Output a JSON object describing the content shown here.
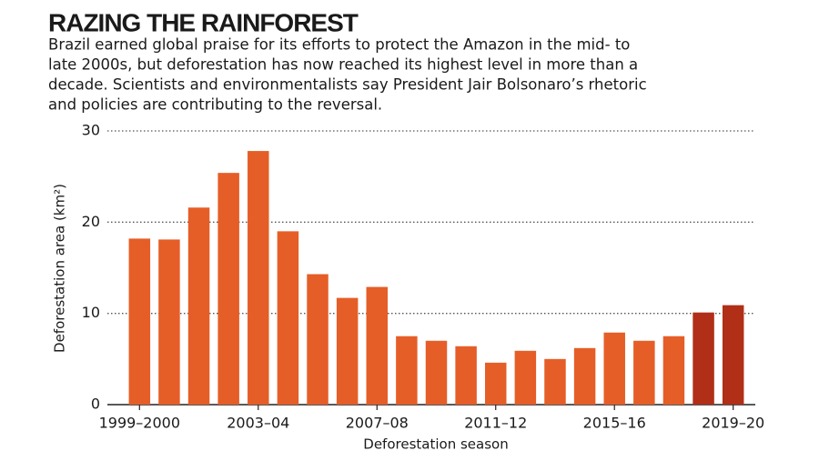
{
  "chart_data": {
    "type": "bar",
    "title": "RAZING THE RAINFOREST",
    "subtitle": [
      "Brazil earned global praise for its efforts to protect the Amazon in the mid- to",
      "late 2000s, but deforestation has now reached its highest level in more than a",
      "decade. Scientists and environmentalists say President Jair Bolsonaro’s rhetoric",
      "and policies are contributing to the reversal."
    ],
    "y_label": "Deforestation area (km²)",
    "x_label": "Deforestation season",
    "categories": [
      "1999–2000",
      null,
      null,
      null,
      "2003–04",
      null,
      null,
      null,
      "2007–08",
      null,
      null,
      null,
      "2011–12",
      null,
      null,
      null,
      "2015–16",
      null,
      null,
      null,
      "2019–20"
    ],
    "values": [
      18.2,
      18.1,
      21.6,
      25.4,
      27.8,
      19.0,
      14.3,
      11.7,
      12.9,
      7.5,
      7.0,
      6.4,
      4.6,
      5.9,
      5.0,
      6.2,
      7.9,
      7.0,
      7.5,
      10.1,
      10.9
    ],
    "colors": [
      "#e55e27",
      "#e55e27",
      "#e55e27",
      "#e55e27",
      "#e55e27",
      "#e55e27",
      "#e55e27",
      "#e55e27",
      "#e55e27",
      "#e55e27",
      "#e55e27",
      "#e55e27",
      "#e55e27",
      "#e55e27",
      "#e55e27",
      "#e55e27",
      "#e55e27",
      "#e55e27",
      "#e55e27",
      "#b02f16",
      "#b02f16"
    ],
    "ylim": [
      0,
      30
    ],
    "yticks": [
      0,
      10,
      20,
      30
    ],
    "grid": true
  }
}
